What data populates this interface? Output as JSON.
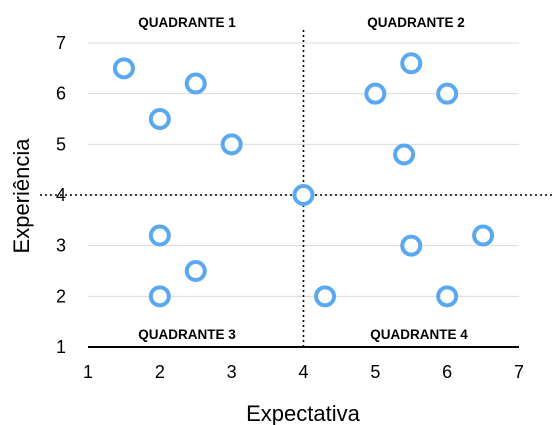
{
  "chart_data": {
    "type": "scatter",
    "xlabel": "Expectativa",
    "ylabel": "Experiência",
    "xlim": [
      1,
      7
    ],
    "ylim": [
      1,
      7
    ],
    "x_ticks": [
      1,
      2,
      3,
      4,
      5,
      6,
      7
    ],
    "y_ticks": [
      1,
      2,
      3,
      4,
      5,
      6,
      7
    ],
    "grid": "horizontal",
    "divider_lines": {
      "x": 4,
      "y": 4,
      "style": "dotted"
    },
    "quadrant_labels": [
      {
        "id": "q1",
        "text": "QUADRANTE 1",
        "position": "top-left"
      },
      {
        "id": "q2",
        "text": "QUADRANTE 2",
        "position": "top-right"
      },
      {
        "id": "q3",
        "text": "QUADRANTE 3",
        "position": "bottom-left"
      },
      {
        "id": "q4",
        "text": "QUADRANTE 4",
        "position": "bottom-right"
      }
    ],
    "marker": {
      "shape": "hollow-circle",
      "color": "#5aa9f0"
    },
    "points": [
      {
        "x": 1.5,
        "y": 6.5
      },
      {
        "x": 2.5,
        "y": 6.2
      },
      {
        "x": 2.0,
        "y": 5.5
      },
      {
        "x": 3.0,
        "y": 5.0
      },
      {
        "x": 5.5,
        "y": 6.6
      },
      {
        "x": 5.0,
        "y": 6.0
      },
      {
        "x": 6.0,
        "y": 6.0
      },
      {
        "x": 5.4,
        "y": 4.8
      },
      {
        "x": 4.0,
        "y": 4.0
      },
      {
        "x": 2.0,
        "y": 3.2
      },
      {
        "x": 2.5,
        "y": 2.5
      },
      {
        "x": 2.0,
        "y": 2.0
      },
      {
        "x": 4.3,
        "y": 2.0
      },
      {
        "x": 5.5,
        "y": 3.0
      },
      {
        "x": 6.5,
        "y": 3.2
      },
      {
        "x": 6.0,
        "y": 2.0
      }
    ]
  }
}
